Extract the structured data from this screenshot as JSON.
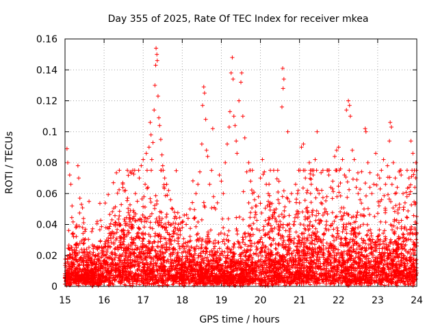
{
  "chart_data": {
    "type": "scatter",
    "title": "Day 355 of 2025, Rate Of TEC Index for receiver mkea",
    "xlabel": "GPS time / hours",
    "ylabel": "ROTI / TECUs",
    "xlim": [
      15,
      24
    ],
    "ylim": [
      0,
      0.16
    ],
    "xticks": [
      "15",
      "16",
      "17",
      "18",
      "19",
      "20",
      "21",
      "22",
      "23",
      "24"
    ],
    "yticks": [
      "0",
      "0.02",
      "0.04",
      "0.06",
      "0.08",
      "0.1",
      "0.12",
      "0.14",
      "0.16"
    ],
    "grid": true,
    "marker": "+",
    "color": "#ff0000",
    "series": [
      {
        "name": "ROTI",
        "points": [
          [
            15.05,
            0.089
          ],
          [
            15.07,
            0.08
          ],
          [
            15.12,
            0.072
          ],
          [
            15.15,
            0.066
          ],
          [
            15.18,
            0.052
          ],
          [
            15.22,
            0.032
          ],
          [
            15.28,
            0.038
          ],
          [
            15.33,
            0.078
          ],
          [
            15.35,
            0.07
          ],
          [
            15.38,
            0.057
          ],
          [
            15.42,
            0.053
          ],
          [
            15.45,
            0.038
          ],
          [
            15.5,
            0.03
          ],
          [
            15.55,
            0.024
          ],
          [
            15.6,
            0.02
          ],
          [
            15.75,
            0.016
          ],
          [
            15.85,
            0.018
          ],
          [
            15.95,
            0.022
          ],
          [
            16.02,
            0.026
          ],
          [
            16.1,
            0.028
          ],
          [
            16.2,
            0.034
          ],
          [
            16.25,
            0.04
          ],
          [
            16.3,
            0.03
          ],
          [
            16.4,
            0.032
          ],
          [
            16.5,
            0.036
          ],
          [
            16.55,
            0.062
          ],
          [
            16.6,
            0.057
          ],
          [
            16.65,
            0.046
          ],
          [
            16.7,
            0.04
          ],
          [
            16.75,
            0.044
          ],
          [
            16.8,
            0.06
          ],
          [
            16.85,
            0.055
          ],
          [
            16.9,
            0.07
          ],
          [
            16.95,
            0.078
          ],
          [
            17.0,
            0.082
          ],
          [
            17.02,
            0.058
          ],
          [
            17.05,
            0.066
          ],
          [
            17.08,
            0.086
          ],
          [
            17.1,
            0.075
          ],
          [
            17.12,
            0.064
          ],
          [
            17.15,
            0.09
          ],
          [
            17.18,
            0.106
          ],
          [
            17.2,
            0.098
          ],
          [
            17.22,
            0.082
          ],
          [
            17.25,
            0.093
          ],
          [
            17.28,
            0.114
          ],
          [
            17.3,
            0.13
          ],
          [
            17.32,
            0.143
          ],
          [
            17.33,
            0.154
          ],
          [
            17.35,
            0.15
          ],
          [
            17.36,
            0.146
          ],
          [
            17.38,
            0.123
          ],
          [
            17.4,
            0.109
          ],
          [
            17.42,
            0.104
          ],
          [
            17.45,
            0.095
          ],
          [
            17.48,
            0.085
          ],
          [
            17.5,
            0.078
          ],
          [
            17.55,
            0.07
          ],
          [
            17.6,
            0.066
          ],
          [
            17.65,
            0.062
          ],
          [
            17.7,
            0.056
          ],
          [
            17.75,
            0.05
          ],
          [
            17.8,
            0.048
          ],
          [
            17.85,
            0.044
          ],
          [
            17.9,
            0.04
          ],
          [
            17.95,
            0.036
          ],
          [
            18.0,
            0.038
          ],
          [
            18.05,
            0.046
          ],
          [
            18.1,
            0.04
          ],
          [
            18.15,
            0.044
          ],
          [
            18.2,
            0.05
          ],
          [
            18.3,
            0.044
          ],
          [
            18.35,
            0.06
          ],
          [
            18.4,
            0.066
          ],
          [
            18.45,
            0.074
          ],
          [
            18.5,
            0.092
          ],
          [
            18.52,
            0.117
          ],
          [
            18.55,
            0.129
          ],
          [
            18.57,
            0.125
          ],
          [
            18.6,
            0.108
          ],
          [
            18.62,
            0.088
          ],
          [
            18.65,
            0.084
          ],
          [
            18.7,
            0.066
          ],
          [
            18.75,
            0.075
          ],
          [
            18.78,
            0.102
          ],
          [
            18.8,
            0.058
          ],
          [
            18.85,
            0.05
          ],
          [
            18.9,
            0.054
          ],
          [
            18.95,
            0.072
          ],
          [
            19.0,
            0.068
          ],
          [
            19.05,
            0.06
          ],
          [
            19.1,
            0.08
          ],
          [
            19.15,
            0.092
          ],
          [
            19.2,
            0.103
          ],
          [
            19.22,
            0.113
          ],
          [
            19.25,
            0.138
          ],
          [
            19.28,
            0.148
          ],
          [
            19.3,
            0.134
          ],
          [
            19.32,
            0.11
          ],
          [
            19.35,
            0.104
          ],
          [
            19.38,
            0.094
          ],
          [
            19.4,
            0.086
          ],
          [
            19.45,
            0.12
          ],
          [
            19.5,
            0.132
          ],
          [
            19.52,
            0.138
          ],
          [
            19.55,
            0.11
          ],
          [
            19.6,
            0.096
          ],
          [
            19.65,
            0.074
          ],
          [
            19.7,
            0.08
          ],
          [
            19.75,
            0.068
          ],
          [
            19.8,
            0.06
          ],
          [
            19.85,
            0.056
          ],
          [
            19.9,
            0.052
          ],
          [
            19.95,
            0.058
          ],
          [
            20.0,
            0.07
          ],
          [
            20.05,
            0.082
          ],
          [
            20.1,
            0.074
          ],
          [
            20.15,
            0.066
          ],
          [
            20.2,
            0.06
          ],
          [
            20.25,
            0.054
          ],
          [
            20.3,
            0.044
          ],
          [
            20.35,
            0.048
          ],
          [
            20.4,
            0.05
          ],
          [
            20.45,
            0.056
          ],
          [
            20.5,
            0.042
          ],
          [
            20.55,
            0.116
          ],
          [
            20.57,
            0.141
          ],
          [
            20.58,
            0.128
          ],
          [
            20.6,
            0.134
          ],
          [
            20.65,
            0.036
          ],
          [
            20.7,
            0.1
          ],
          [
            20.75,
            0.032
          ],
          [
            20.85,
            0.028
          ],
          [
            20.9,
            0.066
          ],
          [
            20.95,
            0.06
          ],
          [
            21.0,
            0.054
          ],
          [
            21.05,
            0.09
          ],
          [
            21.1,
            0.092
          ],
          [
            21.15,
            0.07
          ],
          [
            21.2,
            0.062
          ],
          [
            21.25,
            0.08
          ],
          [
            21.3,
            0.066
          ],
          [
            21.35,
            0.072
          ],
          [
            21.4,
            0.082
          ],
          [
            21.45,
            0.1
          ],
          [
            21.5,
            0.06
          ],
          [
            21.55,
            0.054
          ],
          [
            21.6,
            0.046
          ],
          [
            21.65,
            0.05
          ],
          [
            21.7,
            0.058
          ],
          [
            21.75,
            0.072
          ],
          [
            21.8,
            0.064
          ],
          [
            21.85,
            0.068
          ],
          [
            21.9,
            0.084
          ],
          [
            21.95,
            0.088
          ],
          [
            22.0,
            0.09
          ],
          [
            22.05,
            0.076
          ],
          [
            22.1,
            0.082
          ],
          [
            22.15,
            0.072
          ],
          [
            22.2,
            0.114
          ],
          [
            22.25,
            0.12
          ],
          [
            22.28,
            0.117
          ],
          [
            22.3,
            0.11
          ],
          [
            22.35,
            0.088
          ],
          [
            22.4,
            0.082
          ],
          [
            22.45,
            0.064
          ],
          [
            22.5,
            0.06
          ],
          [
            22.55,
            0.056
          ],
          [
            22.6,
            0.046
          ],
          [
            22.65,
            0.05
          ],
          [
            22.68,
            0.102
          ],
          [
            22.7,
            0.1
          ],
          [
            22.75,
            0.08
          ],
          [
            22.8,
            0.064
          ],
          [
            22.85,
            0.06
          ],
          [
            22.9,
            0.066
          ],
          [
            22.95,
            0.086
          ],
          [
            23.0,
            0.072
          ],
          [
            23.05,
            0.07
          ],
          [
            23.1,
            0.056
          ],
          [
            23.15,
            0.082
          ],
          [
            23.2,
            0.066
          ],
          [
            23.25,
            0.078
          ],
          [
            23.3,
            0.094
          ],
          [
            23.32,
            0.106
          ],
          [
            23.35,
            0.103
          ],
          [
            23.4,
            0.08
          ],
          [
            23.45,
            0.07
          ],
          [
            23.5,
            0.064
          ],
          [
            23.55,
            0.074
          ],
          [
            23.6,
            0.072
          ],
          [
            23.65,
            0.06
          ],
          [
            23.7,
            0.054
          ],
          [
            23.75,
            0.058
          ],
          [
            23.8,
            0.07
          ],
          [
            23.85,
            0.094
          ],
          [
            23.9,
            0.086
          ],
          [
            23.95,
            0.064
          ],
          [
            23.98,
            0.08
          ]
        ]
      }
    ]
  }
}
